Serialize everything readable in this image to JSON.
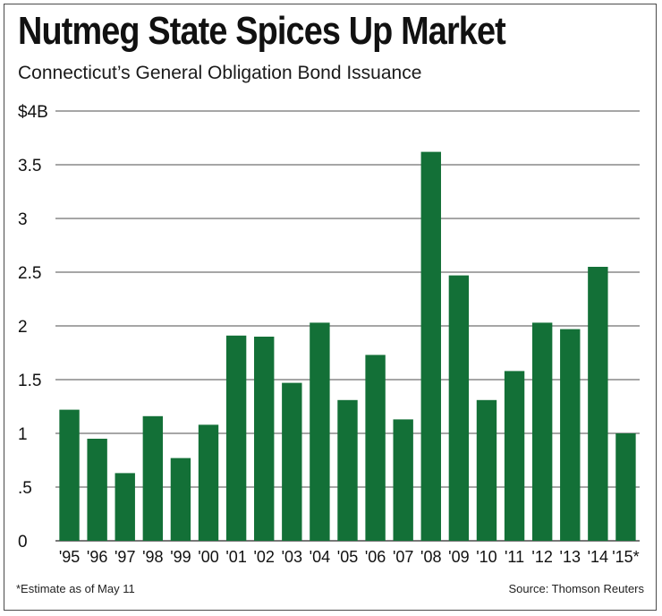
{
  "title": "Nutmeg State Spices Up Market",
  "subtitle": "Connecticut’s General Obligation Bond Issuance",
  "footnote": "*Estimate as of May 11",
  "source": "Source: Thomson Reuters",
  "colors": {
    "bar": "#137037",
    "grid": "#4d4d4d",
    "text": "#111111"
  },
  "chart_data": {
    "type": "bar",
    "categories": [
      "'95",
      "'96",
      "'97",
      "'98",
      "'99",
      "'00",
      "'01",
      "'02",
      "'03",
      "'04",
      "'05",
      "'06",
      "'07",
      "'08",
      "'09",
      "'10",
      "'11",
      "'12",
      "'13",
      "'14",
      "'15*"
    ],
    "values": [
      1.22,
      0.95,
      0.63,
      1.16,
      0.77,
      1.08,
      1.91,
      1.9,
      1.47,
      2.03,
      1.31,
      1.73,
      1.13,
      3.62,
      2.47,
      1.31,
      1.58,
      2.03,
      1.97,
      2.55,
      1.0
    ],
    "ylim": [
      0,
      4
    ],
    "yticks": [
      0,
      0.5,
      1,
      1.5,
      2,
      2.5,
      3,
      3.5,
      4
    ],
    "ytick_labels": [
      "0",
      ".5",
      "1",
      "1.5",
      "2",
      "2.5",
      "3",
      "3.5",
      "$4B"
    ],
    "grid": true
  }
}
